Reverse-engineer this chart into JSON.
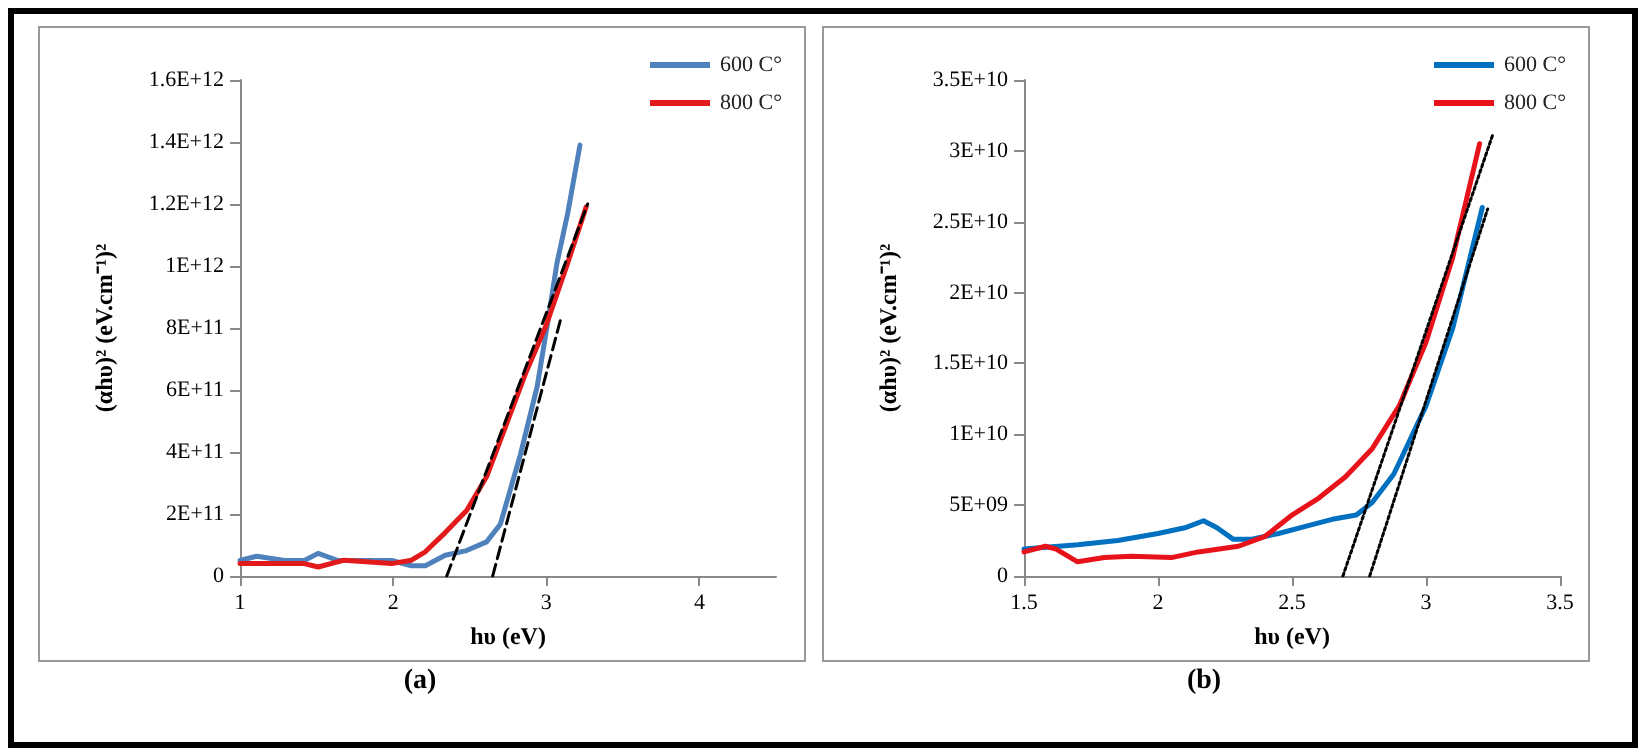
{
  "chart_data": [
    {
      "type": "line",
      "xlabel": "hυ (eV)",
      "ylabel": "(αhυ)² (eV.cm⁻¹)²",
      "annotations": [
        "(a)"
      ],
      "xlim": [
        1,
        4.5
      ],
      "xticks": [
        1,
        2,
        3,
        4
      ],
      "ylim": [
        0,
        1600000000000.0
      ],
      "yticks": [
        {
          "value": 0,
          "label": "0"
        },
        {
          "value": 200000000000.0,
          "label": "2E+11"
        },
        {
          "value": 400000000000.0,
          "label": "4E+11"
        },
        {
          "value": 600000000000.0,
          "label": "6E+11"
        },
        {
          "value": 800000000000.0,
          "label": "8E+11"
        },
        {
          "value": 1000000000000.0,
          "label": "1E+12"
        },
        {
          "value": 1200000000000.0,
          "label": "1.2E+12"
        },
        {
          "value": 1400000000000.0,
          "label": "1.4E+12"
        },
        {
          "value": 1600000000000.0,
          "label": "1.6E+12"
        }
      ],
      "grid": false,
      "legend": "top right",
      "marker": "none",
      "series": [
        {
          "name": "600 C°",
          "color": "#4f81bd",
          "x": [
            1.0,
            1.11,
            1.29,
            1.42,
            1.51,
            1.64,
            1.77,
            1.99,
            2.12,
            2.21,
            2.34,
            2.48,
            2.61,
            2.7,
            2.83,
            2.94,
            3.0,
            3.07,
            3.14,
            3.22
          ],
          "values": [
            50000000000.0,
            64000000000.0,
            50000000000.0,
            50000000000.0,
            73000000000.0,
            50000000000.0,
            50000000000.0,
            50000000000.0,
            33000000000.0,
            33000000000.0,
            67000000000.0,
            82000000000.0,
            110000000000.0,
            167000000000.0,
            390000000000.0,
            610000000000.0,
            790000000000.0,
            1010000000000.0,
            1170000000000.0,
            1390000000000.0
          ]
        },
        {
          "name": "800 C°",
          "color": "#e31a1c",
          "x": [
            1.0,
            1.42,
            1.51,
            1.68,
            1.99,
            2.12,
            2.21,
            2.34,
            2.48,
            2.61,
            2.74,
            2.87,
            3.0,
            3.14,
            3.26
          ],
          "values": [
            40000000000.0,
            40000000000.0,
            29000000000.0,
            51000000000.0,
            40000000000.0,
            51000000000.0,
            78000000000.0,
            140000000000.0,
            211000000000.0,
            320000000000.0,
            490000000000.0,
            660000000000.0,
            810000000000.0,
            1010000000000.0,
            1190000000000.0
          ]
        },
        {
          "type": "line",
          "color": "#000000",
          "line_style": "dashed",
          "x": [
            2.35,
            3.27
          ],
          "values": [
            0,
            1200000000000.0
          ]
        },
        {
          "type": "line",
          "color": "#000000",
          "line_style": "dashed",
          "x": [
            2.65,
            3.1
          ],
          "values": [
            0,
            840000000000.0
          ]
        }
      ]
    },
    {
      "type": "line",
      "xlabel": "hυ (eV)",
      "ylabel": "(αhυ)² (eV.cm⁻¹)²",
      "annotations": [
        "(b)"
      ],
      "xlim": [
        1.5,
        3.5
      ],
      "xticks": [
        1.5,
        2,
        2.5,
        3,
        3.5
      ],
      "ylim": [
        0,
        35000000000.0
      ],
      "yticks": [
        {
          "value": 0,
          "label": "0"
        },
        {
          "value": 5000000000.0,
          "label": "5E+09"
        },
        {
          "value": 10000000000.0,
          "label": "1E+10"
        },
        {
          "value": 15000000000.0,
          "label": "1.5E+10"
        },
        {
          "value": 20000000000.0,
          "label": "2E+10"
        },
        {
          "value": 25000000000.0,
          "label": "2.5E+10"
        },
        {
          "value": 30000000000.0,
          "label": "3E+10"
        },
        {
          "value": 35000000000.0,
          "label": "3.5E+10"
        }
      ],
      "grid": false,
      "legend": "top right",
      "marker": "none",
      "series": [
        {
          "name": "600 C°",
          "color": "#0070c0",
          "x": [
            1.5,
            1.7,
            1.85,
            2.0,
            2.1,
            2.17,
            2.22,
            2.28,
            2.35,
            2.45,
            2.55,
            2.65,
            2.74,
            2.8,
            2.88,
            2.95,
            3.0,
            3.1,
            3.21
          ],
          "values": [
            1900000000.0,
            2200000000.0,
            2500000000.0,
            3000000000.0,
            3400000000.0,
            3900000000.0,
            3400000000.0,
            2600000000.0,
            2600000000.0,
            3000000000.0,
            3500000000.0,
            4000000000.0,
            4300000000.0,
            5200000000.0,
            7200000000.0,
            10000000000.0,
            12000000000.0,
            17500000000.0,
            26000000000.0
          ]
        },
        {
          "name": "800 C°",
          "color": "#e8121a",
          "x": [
            1.5,
            1.58,
            1.62,
            1.7,
            1.8,
            1.9,
            2.05,
            2.15,
            2.3,
            2.4,
            2.5,
            2.6,
            2.7,
            2.8,
            2.9,
            3.0,
            3.1,
            3.2
          ],
          "values": [
            1700000000.0,
            2100000000.0,
            1900000000.0,
            1000000000.0,
            1300000000.0,
            1400000000.0,
            1300000000.0,
            1700000000.0,
            2100000000.0,
            2800000000.0,
            4300000000.0,
            5500000000.0,
            7000000000.0,
            9000000000.0,
            12000000000.0,
            16500000000.0,
            22500000000.0,
            30500000000.0
          ]
        },
        {
          "type": "line",
          "color": "#000000",
          "line_style": "dotted",
          "x": [
            2.69,
            3.25
          ],
          "values": [
            0,
            31200000000.0
          ]
        },
        {
          "type": "line",
          "color": "#000000",
          "line_style": "dotted",
          "x": [
            2.79,
            3.23
          ],
          "values": [
            0,
            25900000000.0
          ]
        }
      ]
    }
  ]
}
